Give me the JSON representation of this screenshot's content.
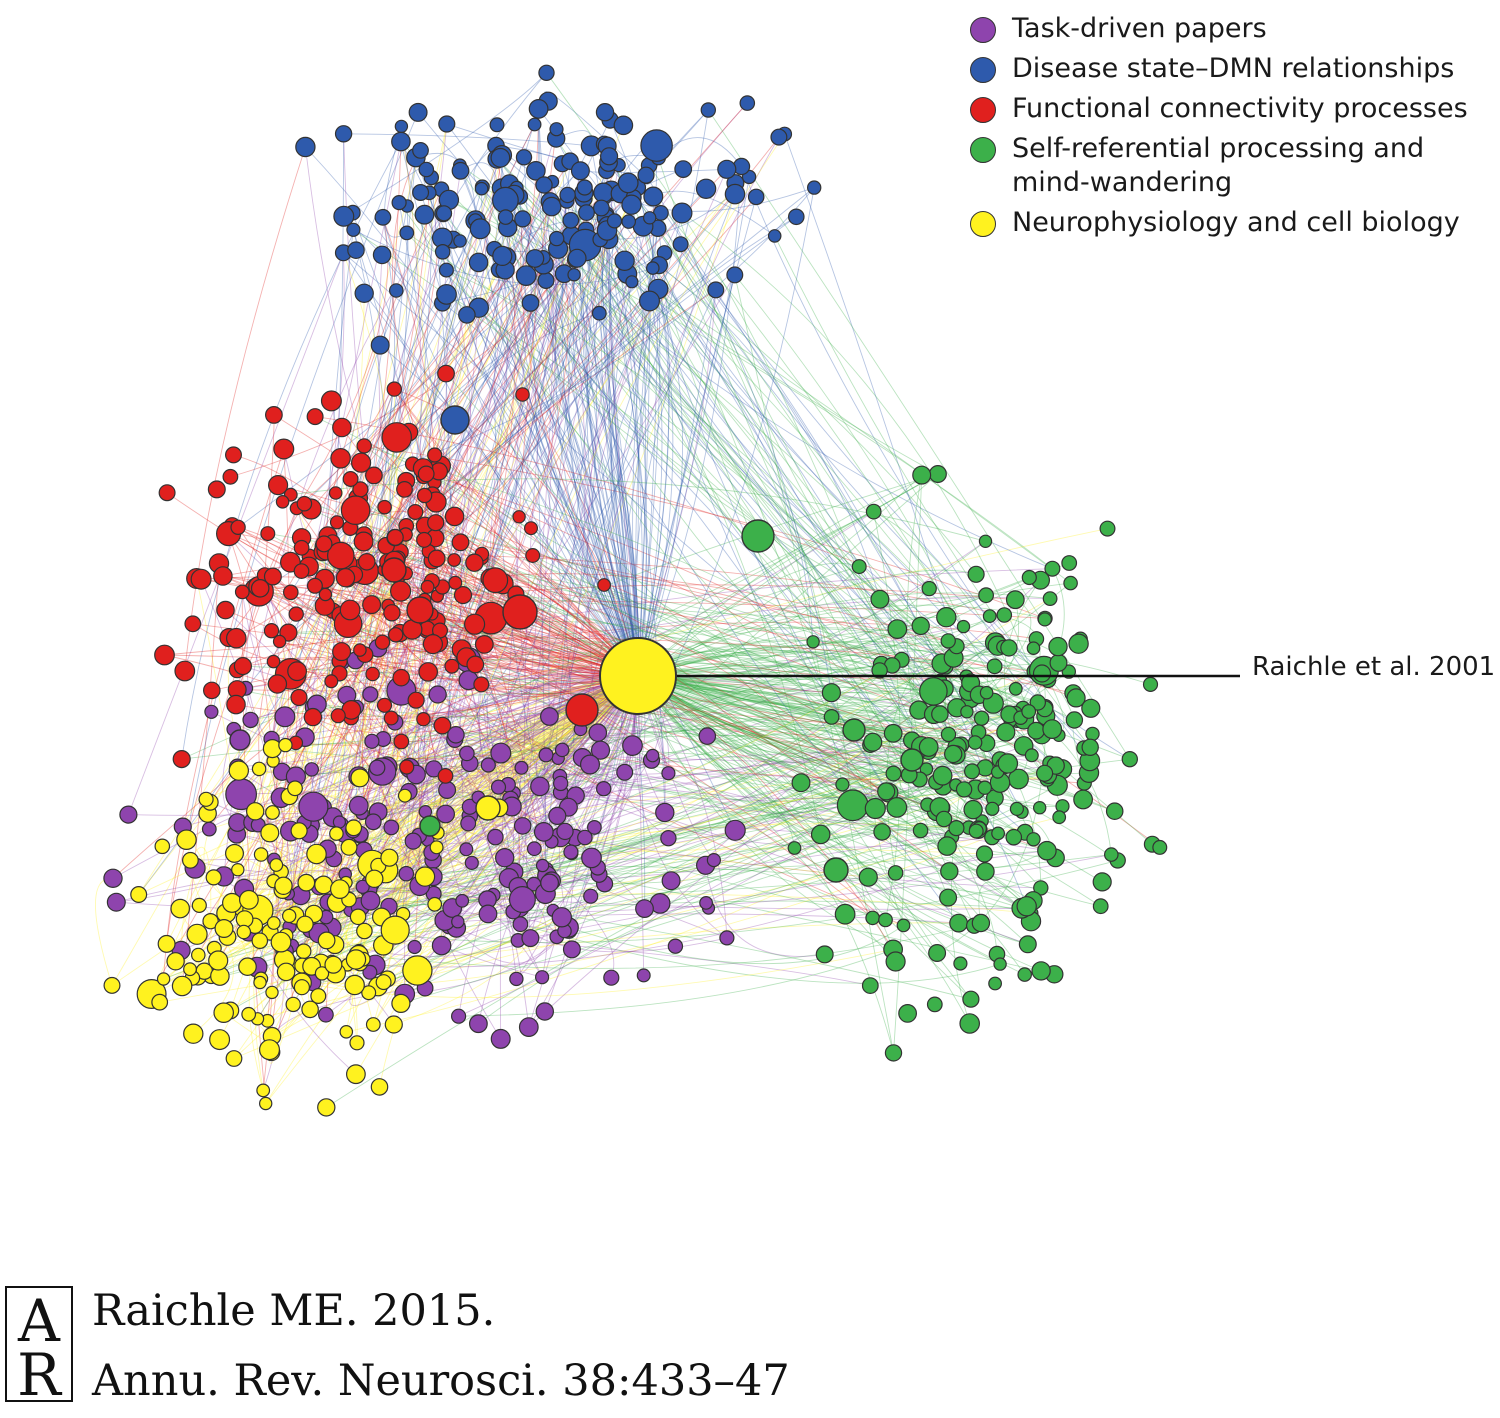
{
  "legend": {
    "items": [
      {
        "label": "Task-driven papers",
        "color": "#8e44ad"
      },
      {
        "label": "Disease state–DMN relationships",
        "color": "#2e5aac"
      },
      {
        "label": "Functional connectivity processes",
        "color": "#e0201e"
      },
      {
        "label": "Self-referential processing and mind-wandering",
        "color": "#3cb04a"
      },
      {
        "label": "Neurophysiology and cell biology",
        "color": "#fff21f"
      }
    ]
  },
  "callout": {
    "label": "Raichle et al. 2001"
  },
  "citation": {
    "logo": "AR",
    "line1": "Raichle ME. 2015.",
    "line2": "Annu. Rev. Neurosci. 38:433–47"
  }
}
